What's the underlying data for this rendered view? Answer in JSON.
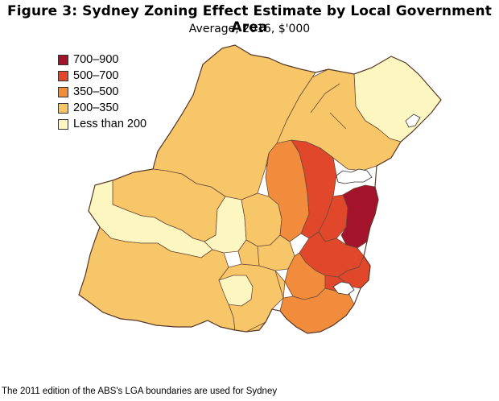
{
  "title": "Figure 3: Sydney Zoning Effect Estimate by Local Government Area",
  "subtitle": "Average, 2016, $'000",
  "legend": [
    {
      "label": "700–900",
      "color": "#a3132b"
    },
    {
      "label": "500–700",
      "color": "#e0472b"
    },
    {
      "label": "350–500",
      "color": "#f08c3c"
    },
    {
      "label": "200–350",
      "color": "#f7c668"
    },
    {
      "label": "Less than 200",
      "color": "#fcf7c0"
    }
  ],
  "footnote": "The 2011 edition of the ABS's LGA boundaries are used for Sydney"
}
